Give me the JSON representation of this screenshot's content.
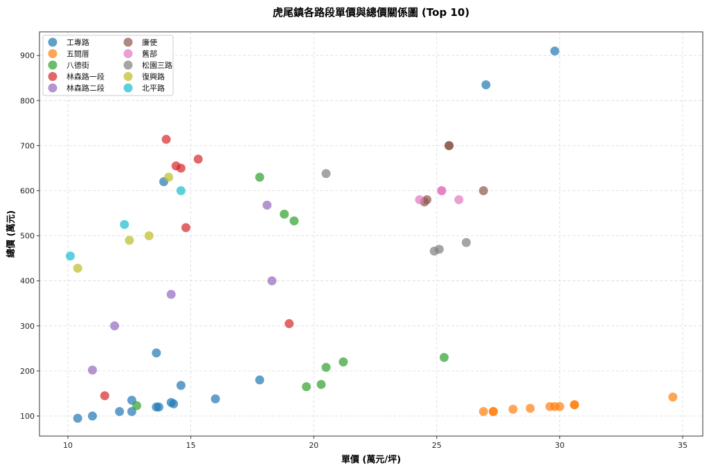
{
  "chart_data": {
    "type": "scatter",
    "title": "虎尾鎮各路段單價與總價關係圖 (Top 10)",
    "xlabel": "單價 (萬元/坪)",
    "ylabel": "總價 (萬元)",
    "xlim": [
      8.8,
      36.0
    ],
    "ylim": [
      55,
      960
    ],
    "xticks": [
      10,
      15,
      20,
      25,
      30,
      35
    ],
    "yticks": [
      100,
      200,
      300,
      400,
      500,
      600,
      700,
      800,
      900
    ],
    "grid": true,
    "legend_position": "upper left",
    "series": [
      {
        "name": "工專路",
        "color": "#1f77b4",
        "points": [
          [
            29.8,
            910
          ],
          [
            27.0,
            835
          ],
          [
            13.9,
            620
          ],
          [
            13.6,
            240
          ],
          [
            10.4,
            95
          ],
          [
            11.0,
            100
          ],
          [
            12.1,
            110
          ],
          [
            12.6,
            110
          ],
          [
            12.6,
            135
          ],
          [
            13.6,
            120
          ],
          [
            13.7,
            120
          ],
          [
            14.2,
            130
          ],
          [
            14.3,
            127
          ],
          [
            14.6,
            168
          ],
          [
            16.0,
            138
          ],
          [
            17.8,
            180
          ]
        ]
      },
      {
        "name": "五間厝",
        "color": "#ff7f0e",
        "points": [
          [
            26.9,
            110
          ],
          [
            27.3,
            110
          ],
          [
            27.3,
            110
          ],
          [
            28.1,
            115
          ],
          [
            28.8,
            117
          ],
          [
            29.6,
            121
          ],
          [
            29.8,
            121
          ],
          [
            30.0,
            121
          ],
          [
            30.6,
            125
          ],
          [
            30.6,
            125
          ],
          [
            34.6,
            142
          ]
        ]
      },
      {
        "name": "八德街",
        "color": "#2ca02c",
        "points": [
          [
            12.8,
            123
          ],
          [
            17.8,
            630
          ],
          [
            18.8,
            548
          ],
          [
            19.2,
            533
          ],
          [
            19.7,
            165
          ],
          [
            20.3,
            170
          ],
          [
            20.5,
            208
          ],
          [
            21.2,
            220
          ],
          [
            25.3,
            230
          ]
        ]
      },
      {
        "name": "林森路一段",
        "color": "#d62728",
        "points": [
          [
            11.5,
            145
          ],
          [
            14.0,
            714
          ],
          [
            14.4,
            655
          ],
          [
            14.6,
            650
          ],
          [
            15.3,
            670
          ],
          [
            14.8,
            518
          ],
          [
            19.0,
            305
          ]
        ]
      },
      {
        "name": "林森路二段",
        "color": "#9467bd",
        "points": [
          [
            11.0,
            202
          ],
          [
            11.9,
            300
          ],
          [
            14.2,
            370
          ],
          [
            18.1,
            568
          ],
          [
            18.3,
            400
          ]
        ]
      },
      {
        "name": "廉使",
        "color": "#8c564b",
        "points": [
          [
            25.5,
            700
          ],
          [
            25.5,
            700
          ],
          [
            26.9,
            600
          ],
          [
            24.5,
            575
          ],
          [
            24.6,
            580
          ]
        ]
      },
      {
        "name": "舊部",
        "color": "#e377c2",
        "points": [
          [
            24.3,
            580
          ],
          [
            25.2,
            600
          ],
          [
            25.2,
            600
          ],
          [
            25.9,
            580
          ]
        ]
      },
      {
        "name": "松園三路",
        "color": "#7f7f7f",
        "points": [
          [
            20.5,
            638
          ],
          [
            24.9,
            466
          ],
          [
            25.1,
            470
          ],
          [
            26.2,
            485
          ]
        ]
      },
      {
        "name": "復興路",
        "color": "#bcbd22",
        "points": [
          [
            10.4,
            428
          ],
          [
            12.5,
            490
          ],
          [
            13.3,
            500
          ],
          [
            14.1,
            630
          ]
        ]
      },
      {
        "name": "北平路",
        "color": "#17becf",
        "points": [
          [
            10.1,
            455
          ],
          [
            12.3,
            525
          ],
          [
            14.6,
            600
          ]
        ]
      }
    ]
  }
}
